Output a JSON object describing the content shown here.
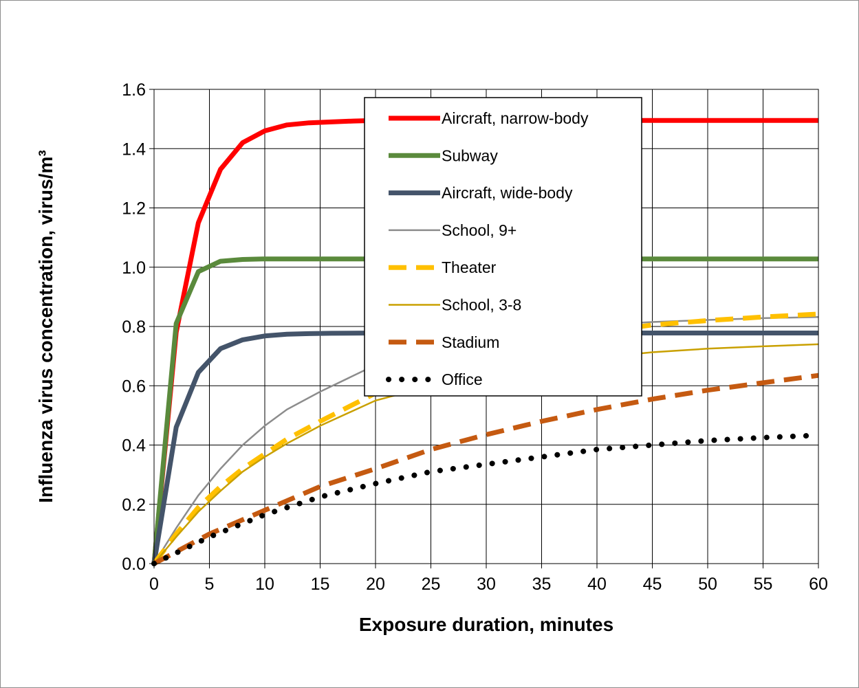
{
  "chart_data": {
    "type": "line",
    "title": "",
    "xlabel": "Exposure duration, minutes",
    "ylabel": "Influenza virus concentration, virus/m³",
    "xlim": [
      0,
      60
    ],
    "ylim": [
      0,
      1.6
    ],
    "xticks": [
      "0",
      "5",
      "10",
      "15",
      "20",
      "25",
      "30",
      "35",
      "40",
      "45",
      "50",
      "55",
      "60"
    ],
    "yticks": [
      "0.0",
      "0.2",
      "0.4",
      "0.6",
      "0.8",
      "1.0",
      "1.2",
      "1.4",
      "1.6"
    ],
    "grid": true,
    "legend_position": "top-center",
    "series": [
      {
        "name": "Aircraft, narrow-body",
        "color": "#ff0000",
        "style": "solid-thick",
        "x": [
          0,
          2,
          4,
          6,
          8,
          10,
          12,
          14,
          16,
          18,
          20,
          60
        ],
        "y": [
          0.0,
          0.78,
          1.15,
          1.33,
          1.42,
          1.46,
          1.48,
          1.487,
          1.49,
          1.493,
          1.495,
          1.495
        ]
      },
      {
        "name": "Subway",
        "color": "#5a8a3c",
        "style": "solid-thick",
        "x": [
          0,
          2,
          4,
          6,
          8,
          10,
          12,
          20,
          60
        ],
        "y": [
          0.0,
          0.81,
          0.985,
          1.02,
          1.026,
          1.028,
          1.028,
          1.028,
          1.028
        ]
      },
      {
        "name": "Aircraft, wide-body",
        "color": "#44546a",
        "style": "solid-thick",
        "x": [
          0,
          2,
          4,
          6,
          8,
          10,
          12,
          14,
          16,
          20,
          60
        ],
        "y": [
          0.0,
          0.46,
          0.645,
          0.725,
          0.755,
          0.768,
          0.774,
          0.776,
          0.777,
          0.778,
          0.778
        ]
      },
      {
        "name": "School, 9+",
        "color": "#8c8c8c",
        "style": "solid-thin",
        "x": [
          0,
          2,
          4,
          6,
          8,
          10,
          12,
          15,
          20,
          25,
          30,
          35,
          40,
          45,
          50,
          55,
          60
        ],
        "y": [
          0.0,
          0.12,
          0.23,
          0.32,
          0.4,
          0.465,
          0.52,
          0.58,
          0.67,
          0.73,
          0.77,
          0.79,
          0.805,
          0.815,
          0.822,
          0.828,
          0.832
        ]
      },
      {
        "name": "Theater",
        "color": "#ffc000",
        "style": "dashed-thick",
        "x": [
          0,
          2,
          4,
          6,
          8,
          10,
          12,
          15,
          20,
          25,
          30,
          35,
          40,
          45,
          50,
          55,
          60
        ],
        "y": [
          0.0,
          0.1,
          0.19,
          0.26,
          0.32,
          0.37,
          0.42,
          0.48,
          0.575,
          0.64,
          0.7,
          0.74,
          0.78,
          0.805,
          0.82,
          0.832,
          0.842
        ]
      },
      {
        "name": "School, 3-8",
        "color": "#c9a000",
        "style": "solid-thin",
        "x": [
          0,
          2,
          4,
          6,
          8,
          10,
          12,
          15,
          20,
          25,
          30,
          35,
          40,
          45,
          50,
          55,
          60
        ],
        "y": [
          0.0,
          0.09,
          0.175,
          0.245,
          0.31,
          0.36,
          0.405,
          0.465,
          0.55,
          0.6,
          0.64,
          0.67,
          0.695,
          0.713,
          0.725,
          0.733,
          0.74
        ]
      },
      {
        "name": "Stadium",
        "color": "#c55a11",
        "style": "dashed-thick",
        "x": [
          0,
          5,
          10,
          15,
          20,
          25,
          30,
          35,
          40,
          45,
          50,
          55,
          60
        ],
        "y": [
          0.0,
          0.1,
          0.18,
          0.26,
          0.32,
          0.385,
          0.435,
          0.48,
          0.52,
          0.555,
          0.585,
          0.61,
          0.635
        ]
      },
      {
        "name": "Office",
        "color": "#000000",
        "style": "dotted",
        "x": [
          0,
          5,
          10,
          15,
          20,
          25,
          30,
          35,
          40,
          45,
          50,
          55,
          60
        ],
        "y": [
          0.0,
          0.09,
          0.165,
          0.225,
          0.27,
          0.31,
          0.335,
          0.36,
          0.385,
          0.4,
          0.415,
          0.425,
          0.433
        ]
      }
    ]
  }
}
